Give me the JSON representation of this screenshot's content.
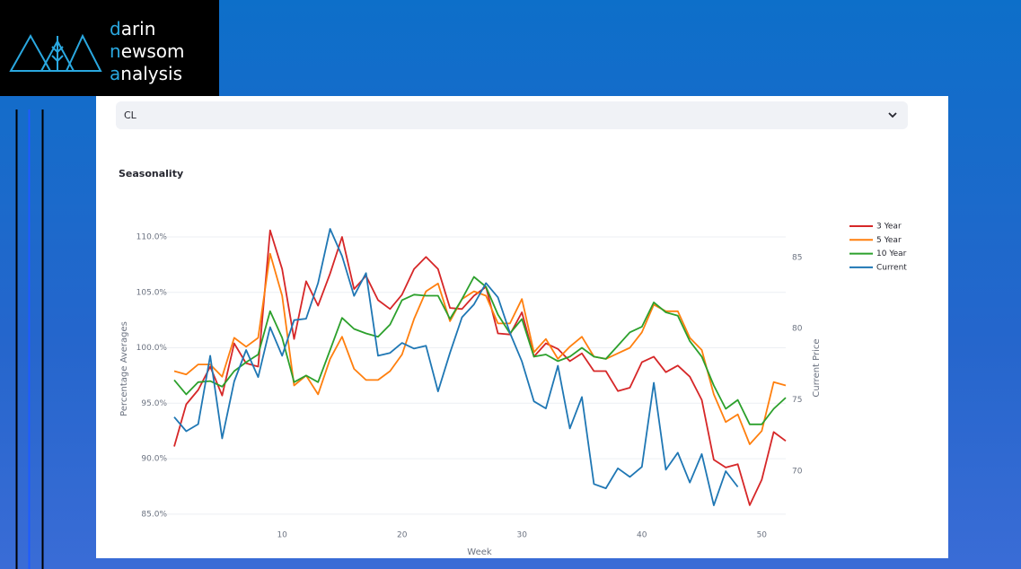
{
  "logo": {
    "lines": [
      "darin",
      "newsom",
      "analysis"
    ]
  },
  "selector": {
    "value": "CL"
  },
  "chart_data": {
    "type": "line",
    "title": "Seasonality",
    "xlabel": "Week",
    "ylabel": "Percentage Averages",
    "y2label": "Current Price",
    "x": [
      1,
      2,
      3,
      4,
      5,
      6,
      7,
      8,
      9,
      10,
      11,
      12,
      13,
      14,
      15,
      16,
      17,
      18,
      19,
      20,
      21,
      22,
      23,
      24,
      25,
      26,
      27,
      28,
      29,
      30,
      31,
      32,
      33,
      34,
      35,
      36,
      37,
      38,
      39,
      40,
      41,
      42,
      43,
      44,
      45,
      46,
      47,
      48,
      49,
      50,
      51,
      52
    ],
    "xlim": [
      1,
      52
    ],
    "xticks": [
      10,
      20,
      30,
      40,
      50
    ],
    "ylim": [
      84.5,
      111.5
    ],
    "yticks": [
      {
        "value": 85,
        "label": "85.0%"
      },
      {
        "value": 90,
        "label": "90.0%"
      },
      {
        "value": 95,
        "label": "95.0%"
      },
      {
        "value": 100,
        "label": "100.0%"
      },
      {
        "value": 105,
        "label": "105.0%"
      },
      {
        "value": 110,
        "label": "110.0%"
      }
    ],
    "y2lim": [
      66.6,
      87.6
    ],
    "y2ticks": [
      70,
      75,
      80,
      85
    ],
    "grid": true,
    "legend": "right",
    "series": [
      {
        "name": "3 Year",
        "color": "#d62728",
        "values": [
          91.1,
          94.9,
          96.2,
          98.3,
          95.7,
          100.4,
          98.6,
          98.3,
          110.6,
          107.1,
          100.8,
          106.0,
          103.8,
          106.7,
          110.0,
          105.3,
          106.5,
          104.3,
          103.5,
          104.8,
          107.1,
          108.2,
          107.1,
          103.6,
          103.5,
          104.7,
          105.5,
          101.3,
          101.2,
          103.2,
          99.2,
          100.4,
          99.9,
          98.8,
          99.5,
          97.9,
          97.9,
          96.1,
          96.4,
          98.7,
          99.2,
          97.8,
          98.4,
          97.4,
          95.3,
          89.9,
          89.2,
          89.5,
          85.8,
          88.1,
          92.4,
          91.6
        ]
      },
      {
        "name": "5 Year",
        "color": "#ff7f0e",
        "values": [
          97.9,
          97.6,
          98.5,
          98.5,
          97.4,
          100.9,
          100.1,
          100.9,
          108.5,
          104.7,
          96.6,
          97.5,
          95.8,
          99.0,
          101.0,
          98.1,
          97.1,
          97.1,
          97.9,
          99.4,
          102.6,
          105.1,
          105.8,
          102.4,
          104.4,
          105.1,
          104.7,
          102.2,
          102.2,
          104.4,
          99.6,
          100.8,
          99.0,
          100.1,
          101.0,
          99.2,
          99.0,
          99.5,
          100.0,
          101.4,
          103.9,
          103.3,
          103.3,
          100.9,
          99.8,
          95.8,
          93.3,
          94.0,
          91.3,
          92.5,
          96.9,
          96.6
        ]
      },
      {
        "name": "10 Year",
        "color": "#2ca02c",
        "values": [
          97.1,
          95.8,
          96.9,
          97.0,
          96.5,
          97.9,
          98.7,
          99.4,
          103.3,
          100.9,
          96.9,
          97.5,
          96.9,
          99.8,
          102.7,
          101.7,
          101.3,
          101.0,
          102.1,
          104.3,
          104.8,
          104.7,
          104.7,
          102.6,
          104.4,
          106.4,
          105.5,
          103.0,
          101.3,
          102.6,
          99.2,
          99.4,
          98.8,
          99.2,
          100.0,
          99.2,
          99.0,
          100.2,
          101.4,
          101.9,
          104.1,
          103.2,
          102.9,
          100.6,
          99.2,
          96.6,
          94.5,
          95.3,
          93.1,
          93.1,
          94.5,
          95.5
        ]
      },
      {
        "name": "Current",
        "color": "#1f77b4",
        "axis": "y2",
        "values": [
          73.8,
          72.8,
          73.3,
          78.1,
          72.3,
          76.3,
          78.5,
          76.6,
          80.1,
          78.1,
          80.6,
          80.7,
          83.2,
          87.0,
          85.1,
          82.3,
          83.9,
          78.1,
          78.3,
          79.0,
          78.6,
          78.8,
          75.6,
          78.3,
          80.8,
          81.7,
          83.2,
          82.2,
          79.7,
          77.7,
          74.9,
          74.4,
          77.4,
          73.0,
          75.2,
          69.1,
          68.8,
          70.2,
          69.6,
          70.3,
          76.2,
          70.1,
          71.3,
          69.2,
          71.2,
          67.6,
          70.0,
          68.9,
          null,
          null,
          null,
          null
        ]
      }
    ]
  }
}
